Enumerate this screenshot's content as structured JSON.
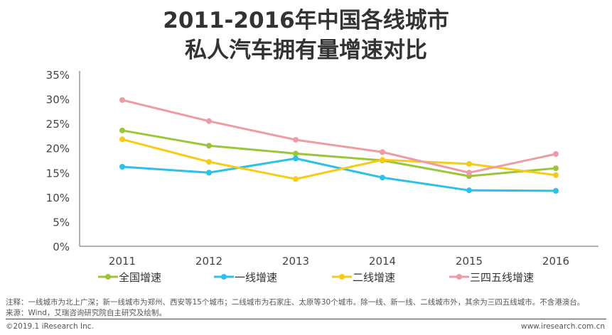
{
  "title_line1": "2011-2016年中国各线城市",
  "title_line2": "私人汽车拥有量增速对比",
  "chart_data": {
    "type": "line",
    "title": "2011-2016年中国各线城市私人汽车拥有量增速对比",
    "categories": [
      "2011",
      "2012",
      "2013",
      "2014",
      "2015",
      "2016"
    ],
    "ylim": [
      0,
      35
    ],
    "yticks": [
      "0%",
      "5%",
      "10%",
      "15%",
      "20%",
      "25%",
      "30%",
      "35%"
    ],
    "unit": "%",
    "grid": false,
    "legend_position": "bottom",
    "series": [
      {
        "name": "全国增速",
        "color": "#9BC63A",
        "values": [
          23.6,
          20.5,
          18.9,
          17.5,
          14.3,
          15.9
        ]
      },
      {
        "name": "一线增速",
        "color": "#2DC0E8",
        "values": [
          16.2,
          15.0,
          17.9,
          14.0,
          11.4,
          11.3
        ]
      },
      {
        "name": "二线增速",
        "color": "#F7CB16",
        "values": [
          21.8,
          17.2,
          13.7,
          17.6,
          16.8,
          14.5
        ]
      },
      {
        "name": "三四五线增速",
        "color": "#EE9BA3",
        "values": [
          29.8,
          25.5,
          21.7,
          19.2,
          15.0,
          18.8
        ]
      }
    ]
  },
  "footer": {
    "note": "注释：一线城市为北上广深；新一线城市为郑州、西安等15个城市；二线城市为石家庄、太原等30个城市。除一线、新一线、二线城市外，其余为三四五线城市。不含港澳台。",
    "source": "来源：Wind，艾瑞咨询研究院自主研究及绘制。",
    "copyright": "©2019.1 iResearch Inc.",
    "website": "www.iresearch.com.cn"
  }
}
